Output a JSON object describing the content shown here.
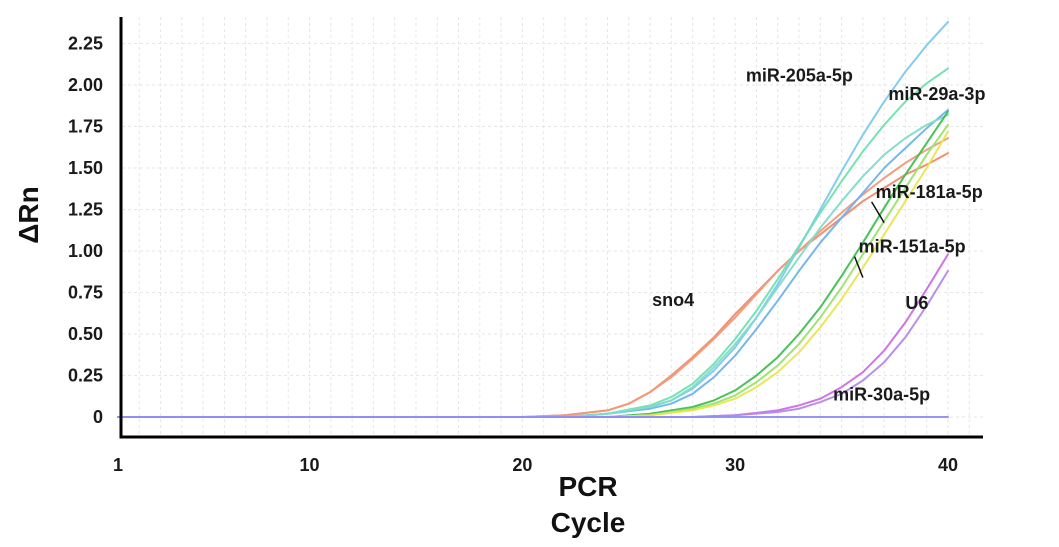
{
  "chart_data": {
    "type": "line",
    "title": "",
    "xlabel_line1": "PCR",
    "xlabel_line2": "Cycle",
    "ylabel": "ΔRn",
    "xlim": [
      1,
      40
    ],
    "ylim": [
      0,
      2.4
    ],
    "grid": true,
    "x_ticks": [
      {
        "value": 1,
        "label": "1"
      },
      {
        "value": 10,
        "label": "10"
      },
      {
        "value": 20,
        "label": "20"
      },
      {
        "value": 30,
        "label": "30"
      },
      {
        "value": 40,
        "label": "40"
      }
    ],
    "y_ticks": [
      {
        "value": 0,
        "label": "0"
      },
      {
        "value": 0.25,
        "label": "0.25"
      },
      {
        "value": 0.5,
        "label": "0.50"
      },
      {
        "value": 0.75,
        "label": "0.75"
      },
      {
        "value": 1.0,
        "label": "1.00"
      },
      {
        "value": 1.25,
        "label": "1.25"
      },
      {
        "value": 1.5,
        "label": "1.50"
      },
      {
        "value": 1.75,
        "label": "1.75"
      },
      {
        "value": 2.0,
        "label": "2.00"
      },
      {
        "value": 2.25,
        "label": "2.25"
      }
    ],
    "series": [
      {
        "name": "sno4",
        "color": "#f08a6a",
        "x": [
          1,
          20,
          22,
          24,
          25,
          26,
          27,
          28,
          29,
          30,
          31,
          32,
          33,
          34,
          35,
          36,
          37,
          38,
          39,
          40
        ],
        "values": [
          0,
          0,
          0.01,
          0.04,
          0.08,
          0.15,
          0.25,
          0.36,
          0.48,
          0.62,
          0.75,
          0.88,
          1.0,
          1.1,
          1.2,
          1.3,
          1.38,
          1.46,
          1.52,
          1.59
        ]
      },
      {
        "name": "",
        "color": "#f29a78",
        "x": [
          1,
          20,
          22,
          24,
          25,
          26,
          27,
          28,
          29,
          30,
          31,
          32,
          33,
          34,
          35,
          36,
          37,
          38,
          39,
          40
        ],
        "values": [
          0,
          0,
          0.01,
          0.04,
          0.08,
          0.15,
          0.24,
          0.35,
          0.47,
          0.6,
          0.74,
          0.88,
          1.0,
          1.12,
          1.23,
          1.34,
          1.44,
          1.53,
          1.61,
          1.68
        ]
      },
      {
        "name": "miR-205a-5p",
        "color": "#7ec8ef",
        "x": [
          1,
          22,
          24,
          26,
          27,
          28,
          29,
          30,
          31,
          32,
          33,
          34,
          35,
          36,
          37,
          38,
          39,
          40
        ],
        "values": [
          0,
          0,
          0.02,
          0.06,
          0.1,
          0.17,
          0.28,
          0.42,
          0.6,
          0.8,
          1.02,
          1.25,
          1.48,
          1.7,
          1.9,
          2.08,
          2.24,
          2.38
        ]
      },
      {
        "name": "",
        "color": "#6fb3ef",
        "x": [
          1,
          22,
          24,
          26,
          27,
          28,
          29,
          30,
          31,
          32,
          33,
          34,
          35,
          36,
          37,
          38,
          39,
          40
        ],
        "values": [
          0,
          0,
          0.02,
          0.05,
          0.08,
          0.14,
          0.24,
          0.37,
          0.53,
          0.7,
          0.88,
          1.05,
          1.2,
          1.35,
          1.5,
          1.62,
          1.74,
          1.85
        ]
      },
      {
        "name": "miR-29a-3p",
        "color": "#6fe0b0",
        "x": [
          1,
          22,
          24,
          26,
          27,
          28,
          29,
          30,
          31,
          32,
          33,
          34,
          35,
          36,
          37,
          38,
          39,
          40
        ],
        "values": [
          0,
          0,
          0.02,
          0.07,
          0.12,
          0.2,
          0.32,
          0.47,
          0.64,
          0.83,
          1.03,
          1.23,
          1.42,
          1.6,
          1.76,
          1.9,
          2.01,
          2.1
        ]
      },
      {
        "name": "",
        "color": "#7fdcc8",
        "x": [
          1,
          22,
          24,
          26,
          27,
          28,
          29,
          30,
          31,
          32,
          33,
          34,
          35,
          36,
          37,
          38,
          39,
          40
        ],
        "values": [
          0,
          0,
          0.02,
          0.06,
          0.1,
          0.18,
          0.3,
          0.44,
          0.6,
          0.78,
          0.96,
          1.14,
          1.3,
          1.45,
          1.58,
          1.68,
          1.76,
          1.82
        ]
      },
      {
        "name": "miR-181a-5p",
        "color": "#3fbf4f",
        "x": [
          1,
          24,
          26,
          28,
          29,
          30,
          31,
          32,
          33,
          34,
          35,
          36,
          37,
          38,
          39,
          40
        ],
        "values": [
          0,
          0,
          0.02,
          0.06,
          0.1,
          0.16,
          0.25,
          0.36,
          0.5,
          0.66,
          0.85,
          1.05,
          1.26,
          1.46,
          1.65,
          1.84
        ]
      },
      {
        "name": "",
        "color": "#9be36b",
        "x": [
          1,
          24,
          26,
          28,
          29,
          30,
          31,
          32,
          33,
          34,
          35,
          36,
          37,
          38,
          39,
          40
        ],
        "values": [
          0,
          0,
          0.01,
          0.05,
          0.08,
          0.13,
          0.21,
          0.31,
          0.44,
          0.6,
          0.78,
          0.98,
          1.18,
          1.38,
          1.58,
          1.76
        ]
      },
      {
        "name": "miR-151a-5p",
        "color": "#e8e64f",
        "x": [
          1,
          24,
          26,
          28,
          29,
          30,
          31,
          32,
          33,
          34,
          35,
          36,
          37,
          38,
          39,
          40
        ],
        "values": [
          0,
          0,
          0.01,
          0.04,
          0.07,
          0.11,
          0.18,
          0.27,
          0.39,
          0.54,
          0.71,
          0.9,
          1.1,
          1.3,
          1.5,
          1.72
        ]
      },
      {
        "name": "U6",
        "color": "#cc6ee6",
        "x": [
          1,
          28,
          30,
          32,
          33,
          34,
          35,
          36,
          37,
          38,
          39,
          40
        ],
        "values": [
          0,
          0,
          0.01,
          0.04,
          0.07,
          0.11,
          0.18,
          0.27,
          0.4,
          0.57,
          0.77,
          0.98
        ]
      },
      {
        "name": "",
        "color": "#b38ae8",
        "x": [
          1,
          28,
          30,
          32,
          33,
          34,
          35,
          36,
          37,
          38,
          39,
          40
        ],
        "values": [
          0,
          0,
          0.01,
          0.03,
          0.05,
          0.09,
          0.14,
          0.22,
          0.33,
          0.48,
          0.67,
          0.88
        ]
      },
      {
        "name": "miR-30a-5p",
        "color": "#8f8ff5",
        "x": [
          1,
          40
        ],
        "values": [
          0,
          0
        ]
      }
    ],
    "labels": [
      {
        "text": "sno4",
        "x": 26.1,
        "y": 0.67
      },
      {
        "text": "miR-205a-5p",
        "x": 30.5,
        "y": 2.02
      },
      {
        "text": "miR-29a-3p",
        "x": 37.2,
        "y": 1.91
      },
      {
        "text": "miR-181a-5p",
        "x": 36.6,
        "y": 1.32,
        "pointer": [
          37.0,
          1.17
        ]
      },
      {
        "text": "miR-151a-5p",
        "x": 35.8,
        "y": 0.99,
        "pointer": [
          36.0,
          0.84
        ]
      },
      {
        "text": "U6",
        "x": 38.0,
        "y": 0.65
      },
      {
        "text": "miR-30a-5p",
        "x": 34.6,
        "y": 0.1
      }
    ]
  }
}
